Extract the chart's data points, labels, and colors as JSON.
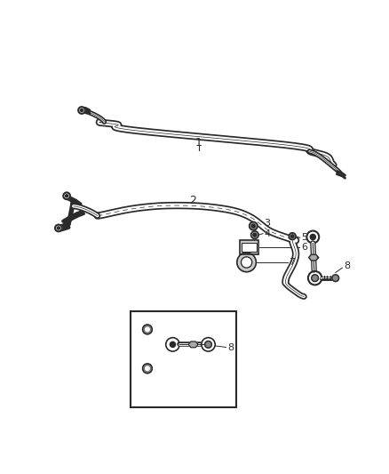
{
  "background_color": "#ffffff",
  "fig_width": 4.38,
  "fig_height": 5.33,
  "dpi": 100,
  "line_color": "#2a2a2a",
  "label_color": "#2a2a2a",
  "line_width": 1.8
}
